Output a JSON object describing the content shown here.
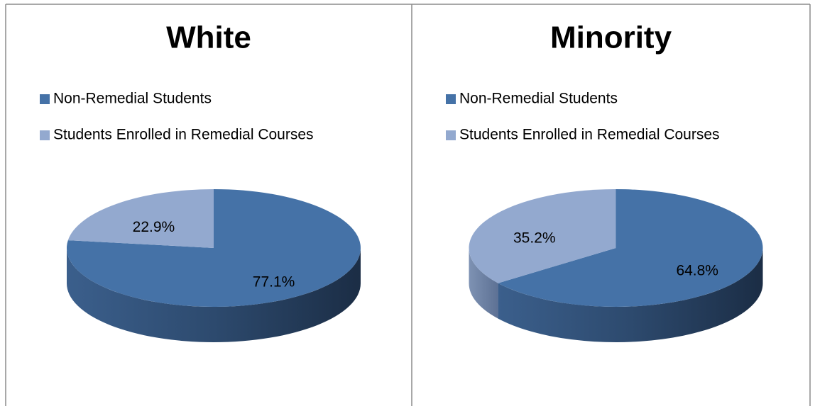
{
  "chart_data": [
    {
      "type": "pie",
      "title": "White",
      "categories": [
        "Non-Remedial Students",
        "Students Enrolled in Remedial Courses"
      ],
      "values": [
        77.1,
        22.9
      ],
      "value_labels": [
        "77.1%",
        "22.9%"
      ],
      "colors": [
        "#4572a7",
        "#93a9cf"
      ],
      "legend": "top"
    },
    {
      "type": "pie",
      "title": "Minority",
      "categories": [
        "Non-Remedial Students",
        "Students Enrolled in Remedial Courses"
      ],
      "values": [
        64.8,
        35.2
      ],
      "value_labels": [
        "64.8%",
        "35.2%"
      ],
      "colors": [
        "#4572a7",
        "#93a9cf"
      ],
      "legend": "top"
    }
  ]
}
